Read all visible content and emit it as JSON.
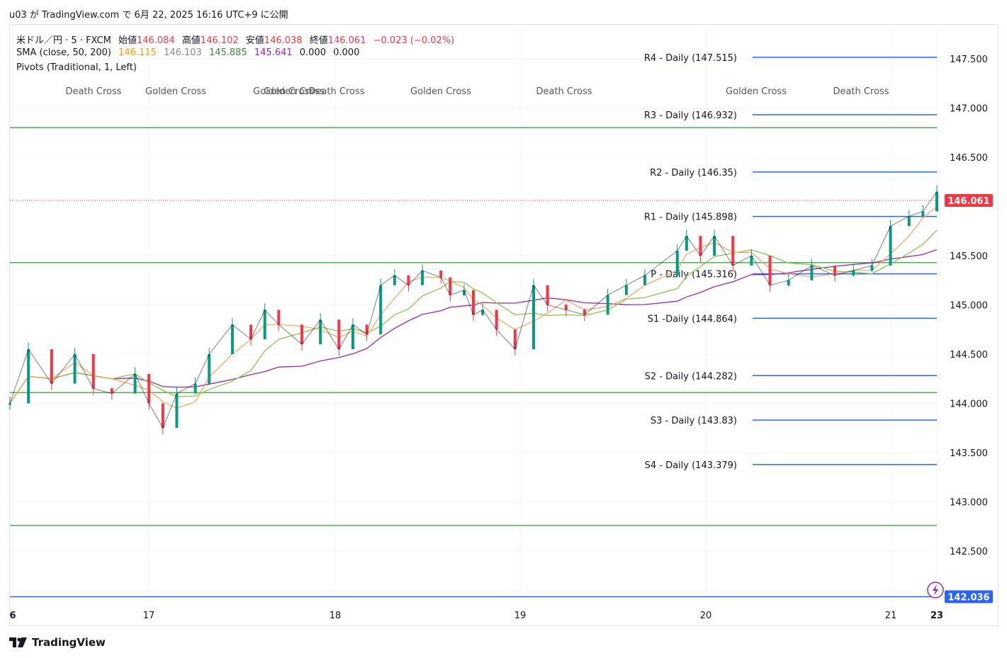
{
  "publish_line": "u03 が TradingView.com で 6月 22, 2025 16:16 UTC+9 に公開",
  "legend": {
    "symbol": "米ドル／円 · 5 · FXCM",
    "open_label": "始値",
    "open": "146.084",
    "high_label": "高値",
    "high": "146.102",
    "low_label": "安値",
    "low": "146.038",
    "close_label": "終値",
    "close": "146.061",
    "change": "−0.023 (−0.02%)",
    "sma_label": "SMA (close, 50, 200)",
    "sma_values": [
      "146.115",
      "146.103",
      "145.885",
      "145.641",
      "0.000",
      "0.000"
    ],
    "pivots_label": "Pivots (Traditional, 1, Left)"
  },
  "footer": {
    "brand": "TradingView"
  },
  "colors": {
    "up": "#089981",
    "down": "#f23645",
    "pivot": "#2962ff",
    "hline": "#4caf50",
    "sma_fast": "#f7a35c",
    "sma_slow": "#8bc34a",
    "sma_200": "#9c27b0",
    "sma_mid": "#9e9e9e"
  },
  "chart_data": {
    "type": "line",
    "title": "",
    "xlabel": "",
    "ylabel": "",
    "ylim": [
      142.0,
      147.7
    ],
    "y_ticks": [
      "147.500",
      "147.000",
      "146.500",
      "145.500",
      "145.000",
      "144.500",
      "144.000",
      "143.500",
      "143.000",
      "142.500"
    ],
    "x_ticks": [
      "6",
      "17",
      "18",
      "19",
      "20",
      "21",
      "23"
    ],
    "last_price": "146.061",
    "last_price_value": 146.061,
    "alt_price": "142.036",
    "alt_price_value": 142.036,
    "horizontal_lines": [
      146.8,
      145.43,
      144.11,
      142.76
    ],
    "pivots": [
      {
        "label": "R4 - Daily (147.515)",
        "value": 147.515
      },
      {
        "label": "R3 - Daily (146.932)",
        "value": 146.932
      },
      {
        "label": "R2 - Daily (146.35)",
        "value": 146.35
      },
      {
        "label": "R1 - Daily (145.898)",
        "value": 145.898
      },
      {
        "label": "P - Daily (145.316)",
        "value": 145.316
      },
      {
        "label": "S1 -Daily (144.864)",
        "value": 144.864
      },
      {
        "label": "S2 - Daily (144.282)",
        "value": 144.282
      },
      {
        "label": "S3 - Daily (143.83)",
        "value": 143.83
      },
      {
        "label": "S4 - Daily (143.379)",
        "value": 143.379
      }
    ],
    "cross_labels": [
      "Death Cross",
      "Golden Cross",
      "Golden Cross",
      "Death Cross",
      "Golden Cross",
      "Death Cross",
      "Golden Cross",
      "Death Cross",
      "Golden Cross"
    ],
    "price_series": {
      "name": "",
      "x": [
        0,
        0.02,
        0.045,
        0.07,
        0.09,
        0.11,
        0.135,
        0.15,
        0.165,
        0.18,
        0.2,
        0.215,
        0.24,
        0.26,
        0.275,
        0.29,
        0.315,
        0.335,
        0.355,
        0.37,
        0.385,
        0.4,
        0.415,
        0.43,
        0.445,
        0.465,
        0.475,
        0.49,
        0.5,
        0.51,
        0.525,
        0.545,
        0.565,
        0.58,
        0.6,
        0.62,
        0.645,
        0.665,
        0.685,
        0.72,
        0.73,
        0.745,
        0.76,
        0.78,
        0.8,
        0.82,
        0.84,
        0.865,
        0.89,
        0.91,
        0.93,
        0.95,
        0.97,
        0.985,
        1.0
      ],
      "y": [
        144.0,
        144.55,
        144.2,
        144.5,
        144.15,
        144.1,
        144.3,
        144.0,
        143.75,
        144.1,
        144.2,
        144.5,
        144.8,
        144.65,
        144.95,
        144.8,
        144.6,
        144.85,
        144.55,
        144.8,
        144.7,
        145.2,
        145.3,
        145.2,
        145.35,
        145.28,
        145.1,
        145.15,
        144.9,
        144.95,
        144.75,
        144.55,
        145.2,
        145.0,
        144.95,
        144.9,
        145.1,
        145.2,
        145.3,
        145.55,
        145.7,
        145.5,
        145.7,
        145.4,
        145.5,
        145.2,
        145.25,
        145.4,
        145.3,
        145.35,
        145.4,
        145.8,
        145.9,
        145.95,
        146.15
      ]
    }
  }
}
